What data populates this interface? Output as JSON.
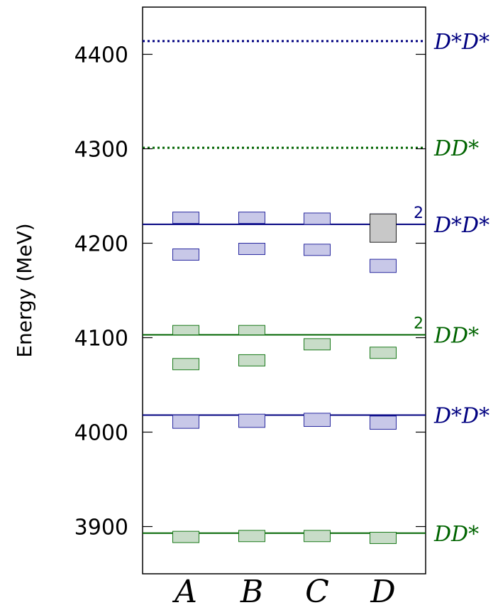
{
  "chart_data": {
    "type": "energy-level",
    "ylabel": "Energy (MeV)",
    "ylim": [
      3850,
      4450
    ],
    "y_ticks": [
      3900,
      4000,
      4100,
      4200,
      4300,
      4400
    ],
    "categories": [
      "A",
      "B",
      "C",
      "D"
    ],
    "thresholds": [
      {
        "label": "D*D*",
        "energy": 4414,
        "style": "dotted",
        "color": "#000080",
        "multiplicity": ""
      },
      {
        "label": "DD*",
        "energy": 4301,
        "style": "dotted",
        "color": "#006400",
        "multiplicity": ""
      },
      {
        "label": "D*D*",
        "energy": 4220,
        "style": "solid",
        "color": "#000080",
        "multiplicity": "2"
      },
      {
        "label": "DD*",
        "energy": 4103,
        "style": "solid",
        "color": "#006400",
        "multiplicity": "2"
      },
      {
        "label": "D*D*",
        "energy": 4018,
        "style": "solid",
        "color": "#000080",
        "multiplicity": ""
      },
      {
        "label": "DD*",
        "energy": 3893,
        "style": "solid",
        "color": "#006400",
        "multiplicity": ""
      }
    ],
    "levels": [
      {
        "category": "A",
        "energy": 4227,
        "error": 6,
        "color": "blue"
      },
      {
        "category": "A",
        "energy": 4188,
        "error": 6,
        "color": "blue"
      },
      {
        "category": "A",
        "energy": 4108,
        "error": 5,
        "color": "green"
      },
      {
        "category": "A",
        "energy": 4072,
        "error": 6,
        "color": "green"
      },
      {
        "category": "A",
        "energy": 4011,
        "error": 7,
        "color": "blue"
      },
      {
        "category": "A",
        "energy": 3889,
        "error": 6,
        "color": "green"
      },
      {
        "category": "B",
        "energy": 4227,
        "error": 6,
        "color": "blue"
      },
      {
        "category": "B",
        "energy": 4194,
        "error": 6,
        "color": "blue"
      },
      {
        "category": "B",
        "energy": 4108,
        "error": 5,
        "color": "green"
      },
      {
        "category": "B",
        "energy": 4076,
        "error": 6,
        "color": "green"
      },
      {
        "category": "B",
        "energy": 4012,
        "error": 7,
        "color": "blue"
      },
      {
        "category": "B",
        "energy": 3890,
        "error": 6,
        "color": "green"
      },
      {
        "category": "C",
        "energy": 4226,
        "error": 6,
        "color": "blue"
      },
      {
        "category": "C",
        "energy": 4193,
        "error": 6,
        "color": "blue"
      },
      {
        "category": "C",
        "energy": 4093,
        "error": 6,
        "color": "green"
      },
      {
        "category": "C",
        "energy": 4013,
        "error": 7,
        "color": "blue"
      },
      {
        "category": "C",
        "energy": 3890,
        "error": 6,
        "color": "green"
      },
      {
        "category": "D",
        "energy": 4225,
        "error": 6,
        "color": "blue"
      },
      {
        "category": "D",
        "energy": 4216,
        "error": 15,
        "color": "gray"
      },
      {
        "category": "D",
        "energy": 4176,
        "error": 7,
        "color": "blue"
      },
      {
        "category": "D",
        "energy": 4084,
        "error": 6,
        "color": "green"
      },
      {
        "category": "D",
        "energy": 4010,
        "error": 7,
        "color": "blue"
      },
      {
        "category": "D",
        "energy": 3888,
        "error": 6,
        "color": "green"
      }
    ],
    "colors": {
      "blue": {
        "fill": "#c8c8e8",
        "stroke": "#2a2aa0"
      },
      "green": {
        "fill": "#c8dcc8",
        "stroke": "#1a7a1a"
      },
      "gray": {
        "fill": "#c8c8c8",
        "stroke": "#202020"
      }
    }
  }
}
